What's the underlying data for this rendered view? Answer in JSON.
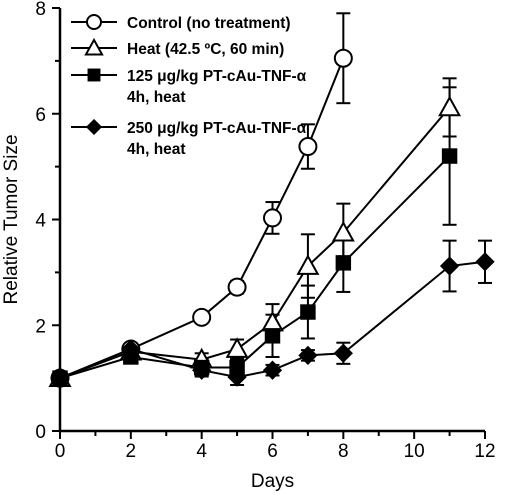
{
  "chart_data": {
    "type": "line",
    "xlabel": "Days",
    "ylabel": "Relative Tumor Size",
    "xlim": [
      0,
      12
    ],
    "ylim": [
      0,
      8
    ],
    "xticks": [
      0,
      2,
      4,
      6,
      8,
      10,
      12
    ],
    "yticks": [
      0,
      2,
      4,
      6,
      8
    ],
    "grid": false,
    "legend_position": "top-left",
    "series": [
      {
        "name": "Control (no treatment)",
        "marker": "circle-open",
        "legend_lines": [
          "Control (no treatment)"
        ],
        "x": [
          0,
          2,
          4,
          5,
          6,
          7,
          8
        ],
        "y": [
          1.0,
          1.55,
          2.15,
          2.72,
          4.03,
          5.38,
          7.05
        ],
        "err": [
          0.05,
          0.1,
          0.05,
          0.12,
          0.3,
          0.42,
          0.85
        ]
      },
      {
        "name": "Heat (42.5 ºC, 60 min)",
        "marker": "triangle-open",
        "legend_lines": [
          "Heat (42.5 ºC, 60 min)"
        ],
        "x": [
          0,
          2,
          4,
          5,
          6,
          7,
          8,
          11
        ],
        "y": [
          1.0,
          1.5,
          1.35,
          1.55,
          2.05,
          3.12,
          3.75,
          6.12
        ],
        "err": [
          0.05,
          0.1,
          0.12,
          0.18,
          0.35,
          0.6,
          0.55,
          0.55
        ]
      },
      {
        "name": "125 μg/kg PT-cAu-TNF-α 4h, heat",
        "marker": "square-filled",
        "legend_lines": [
          "125 μg/kg PT-cAu-TNF-α",
          "4h, heat"
        ],
        "x": [
          0,
          2,
          4,
          5,
          6,
          7,
          8,
          11
        ],
        "y": [
          1.0,
          1.4,
          1.2,
          1.2,
          1.8,
          2.25,
          3.18,
          5.2
        ],
        "err": [
          0.05,
          0.1,
          0.15,
          0.15,
          0.4,
          0.5,
          0.55,
          1.3
        ]
      },
      {
        "name": "250 μg/kg PT-cAu-TNF-α 4h, heat",
        "marker": "diamond-filled",
        "legend_lines": [
          "250 μg/kg PT-cAu-TNF-α",
          "4h, heat"
        ],
        "x": [
          0,
          2,
          4,
          5,
          6,
          7,
          8,
          11,
          12
        ],
        "y": [
          1.0,
          1.55,
          1.15,
          1.02,
          1.15,
          1.43,
          1.47,
          3.12,
          3.2
        ],
        "err": [
          0.05,
          0.1,
          0.12,
          0.15,
          0.1,
          0.1,
          0.2,
          0.48,
          0.4
        ]
      }
    ]
  }
}
